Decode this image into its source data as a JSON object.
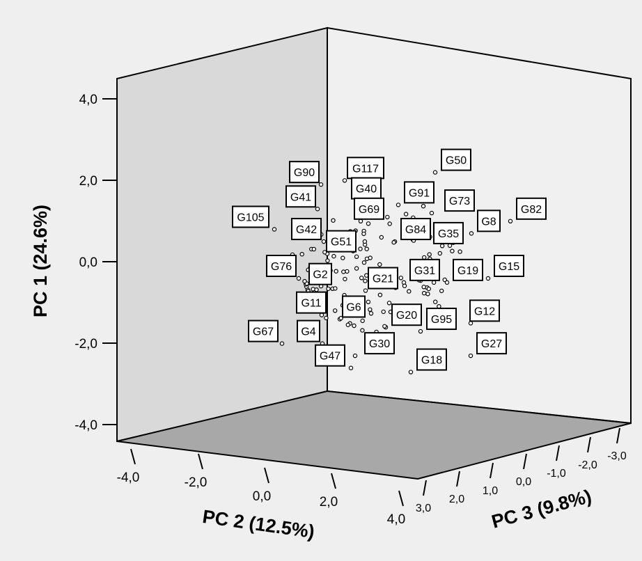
{
  "chart_data": {
    "type": "scatter",
    "axes": {
      "x": {
        "title": "PC 2 (12.5%)",
        "ticks": [
          "-4,0",
          "-2,0",
          "0,0",
          "2,0",
          "4,0"
        ]
      },
      "y": {
        "title": "PC 1 (24.6%)",
        "ticks": [
          "4,0",
          "2,0",
          "0,0",
          "-2,0",
          "-4,0"
        ]
      },
      "z": {
        "title": "PC 3 (9.8%)",
        "ticks": [
          "3,0",
          "2,0",
          "1,0",
          "0,0",
          "-1,0",
          "-2,0",
          "-3,0"
        ]
      }
    },
    "labeled_points": [
      {
        "label": "G50",
        "pc1": 2.4
      },
      {
        "label": "G117",
        "pc1": 2.2
      },
      {
        "label": "G90",
        "pc1": 2.1
      },
      {
        "label": "G40",
        "pc1": 1.7
      },
      {
        "label": "G91",
        "pc1": 1.6
      },
      {
        "label": "G41",
        "pc1": 1.5
      },
      {
        "label": "G73",
        "pc1": 1.4
      },
      {
        "label": "G82",
        "pc1": 1.2
      },
      {
        "label": "G69",
        "pc1": 1.2
      },
      {
        "label": "G105",
        "pc1": 1.0
      },
      {
        "label": "G8",
        "pc1": 0.9
      },
      {
        "label": "G42",
        "pc1": 0.7
      },
      {
        "label": "G84",
        "pc1": 0.7
      },
      {
        "label": "G35",
        "pc1": 0.6
      },
      {
        "label": "G51",
        "pc1": 0.4
      },
      {
        "label": "G76",
        "pc1": 0.0
      },
      {
        "label": "G15",
        "pc1": 0.0
      },
      {
        "label": "G19",
        "pc1": -0.1
      },
      {
        "label": "G31",
        "pc1": -0.1
      },
      {
        "label": "G2",
        "pc1": -0.2
      },
      {
        "label": "G21",
        "pc1": -0.3
      },
      {
        "label": "G11",
        "pc1": -0.9
      },
      {
        "label": "G6",
        "pc1": -1.0
      },
      {
        "label": "G12",
        "pc1": -1.1
      },
      {
        "label": "G20",
        "pc1": -1.2
      },
      {
        "label": "G95",
        "pc1": -1.3
      },
      {
        "label": "G67",
        "pc1": -1.6
      },
      {
        "label": "G4",
        "pc1": -1.6
      },
      {
        "label": "G30",
        "pc1": -1.9
      },
      {
        "label": "G27",
        "pc1": -1.9
      },
      {
        "label": "G47",
        "pc1": -2.2
      },
      {
        "label": "G18",
        "pc1": -2.3
      }
    ],
    "unlabeled_point_count": 130,
    "grid": false,
    "legend": "none"
  }
}
